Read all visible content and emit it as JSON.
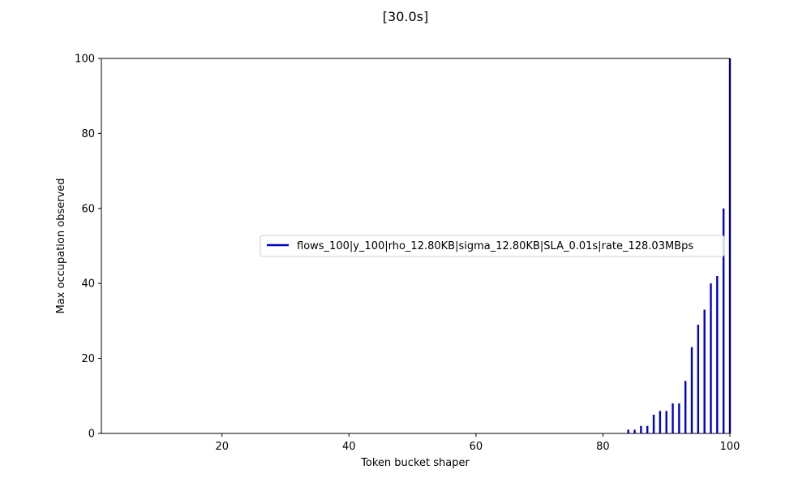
{
  "chart_data": {
    "type": "bar",
    "title": "[30.0s]",
    "xlabel": "Token bucket shaper",
    "ylabel": "Max occupation observed",
    "xlim": [
      1,
      100
    ],
    "ylim": [
      0,
      100
    ],
    "xticks": [
      20,
      40,
      60,
      80,
      100
    ],
    "yticks": [
      0,
      20,
      40,
      60,
      80,
      100
    ],
    "grid": false,
    "legend_position": "center-right",
    "series": [
      {
        "name": "flows_100|y_100|rho_12.80KB|sigma_12.80KB|SLA_0.01s|rate_128.03MBps",
        "color": "#0000cc",
        "x": [
          84,
          85,
          86,
          87,
          88,
          89,
          90,
          91,
          92,
          93,
          94,
          95,
          96,
          97,
          98,
          99,
          100
        ],
        "values": [
          1,
          1,
          2,
          2,
          5,
          6,
          6,
          8,
          8,
          14,
          23,
          29,
          33,
          40,
          42,
          60,
          100
        ]
      }
    ]
  }
}
